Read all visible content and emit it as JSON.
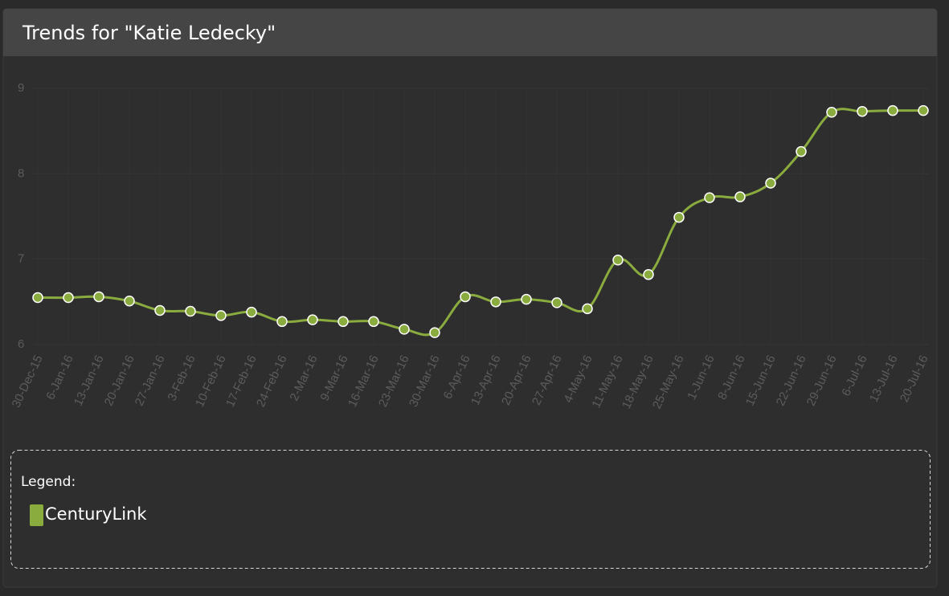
{
  "chart_data": {
    "type": "line",
    "title": "Trends for \"Katie Ledecky\"",
    "legend_title": "Legend:",
    "x": [
      "30-Dec-15",
      "6-Jan-16",
      "13-Jan-16",
      "20-Jan-16",
      "27-Jan-16",
      "3-Feb-16",
      "10-Feb-16",
      "17-Feb-16",
      "24-Feb-16",
      "2-Mar-16",
      "9-Mar-16",
      "16-Mar-16",
      "23-Mar-16",
      "30-Mar-16",
      "6-Apr-16",
      "13-Apr-16",
      "20-Apr-16",
      "27-Apr-16",
      "4-May-16",
      "11-May-16",
      "18-May-16",
      "25-May-16",
      "1-Jun-16",
      "8-Jun-16",
      "15-Jun-16",
      "22-Jun-16",
      "29-Jun-16",
      "6-Jul-16",
      "13-Jul-16",
      "20-Jul-16"
    ],
    "series": [
      {
        "name": "CenturyLink",
        "color": "#8aab3e",
        "values": [
          6.55,
          6.55,
          6.56,
          6.51,
          6.4,
          6.39,
          6.34,
          6.38,
          6.27,
          6.29,
          6.27,
          6.27,
          6.18,
          6.14,
          6.56,
          6.5,
          6.53,
          6.49,
          6.42,
          6.99,
          6.82,
          7.49,
          7.72,
          7.73,
          7.89,
          8.26,
          8.72,
          8.73,
          8.74,
          8.74
        ]
      }
    ],
    "ylim": [
      6,
      9
    ],
    "yticks": [
      6,
      7,
      8,
      9
    ],
    "grid": true
  }
}
